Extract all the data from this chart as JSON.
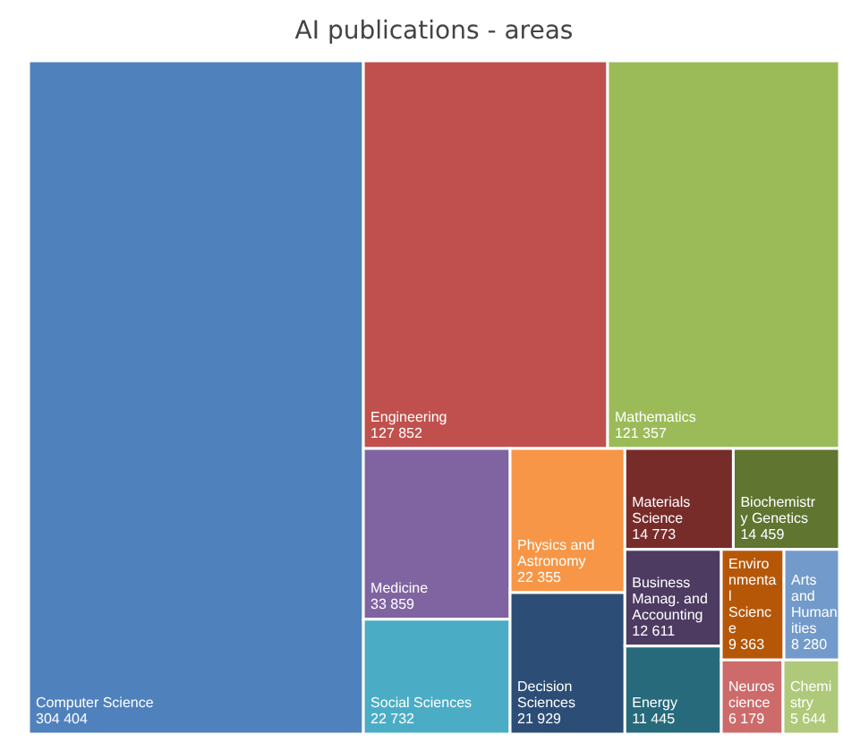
{
  "chart_data": {
    "type": "other",
    "title": "AI publications - areas",
    "categories": [
      "Computer Science",
      "Engineering",
      "Mathematics",
      "Medicine",
      "Social Sciences",
      "Physics and Astronomy",
      "Decision Sciences",
      "Materials Science",
      "Biochemistry Genetics",
      "Business Manag. and Accounting",
      "Energy",
      "Environmental Science",
      "Arts and Humanities",
      "Neuroscience",
      "Chemistry"
    ],
    "values": [
      304404,
      127852,
      121357,
      33859,
      22732,
      22355,
      21929,
      14773,
      14459,
      12611,
      11445,
      9363,
      8280,
      6179,
      5644
    ],
    "value_labels": [
      "304 404",
      "127 852",
      "121 357",
      "33 859",
      "22 732",
      "22 355",
      "21 929",
      "14 773",
      "14 459",
      "12 611",
      "11 445",
      "9 363",
      "8 280",
      "6 179",
      "5 644"
    ],
    "colors": [
      "#4f81bd",
      "#c0504d",
      "#9bbb59",
      "#8064a2",
      "#4bacc6",
      "#f79646",
      "#2c4d75",
      "#772c2a",
      "#5f7530",
      "#4d3b62",
      "#276a7c",
      "#b65708",
      "#729aca",
      "#cd6b6b",
      "#afc97a"
    ]
  }
}
